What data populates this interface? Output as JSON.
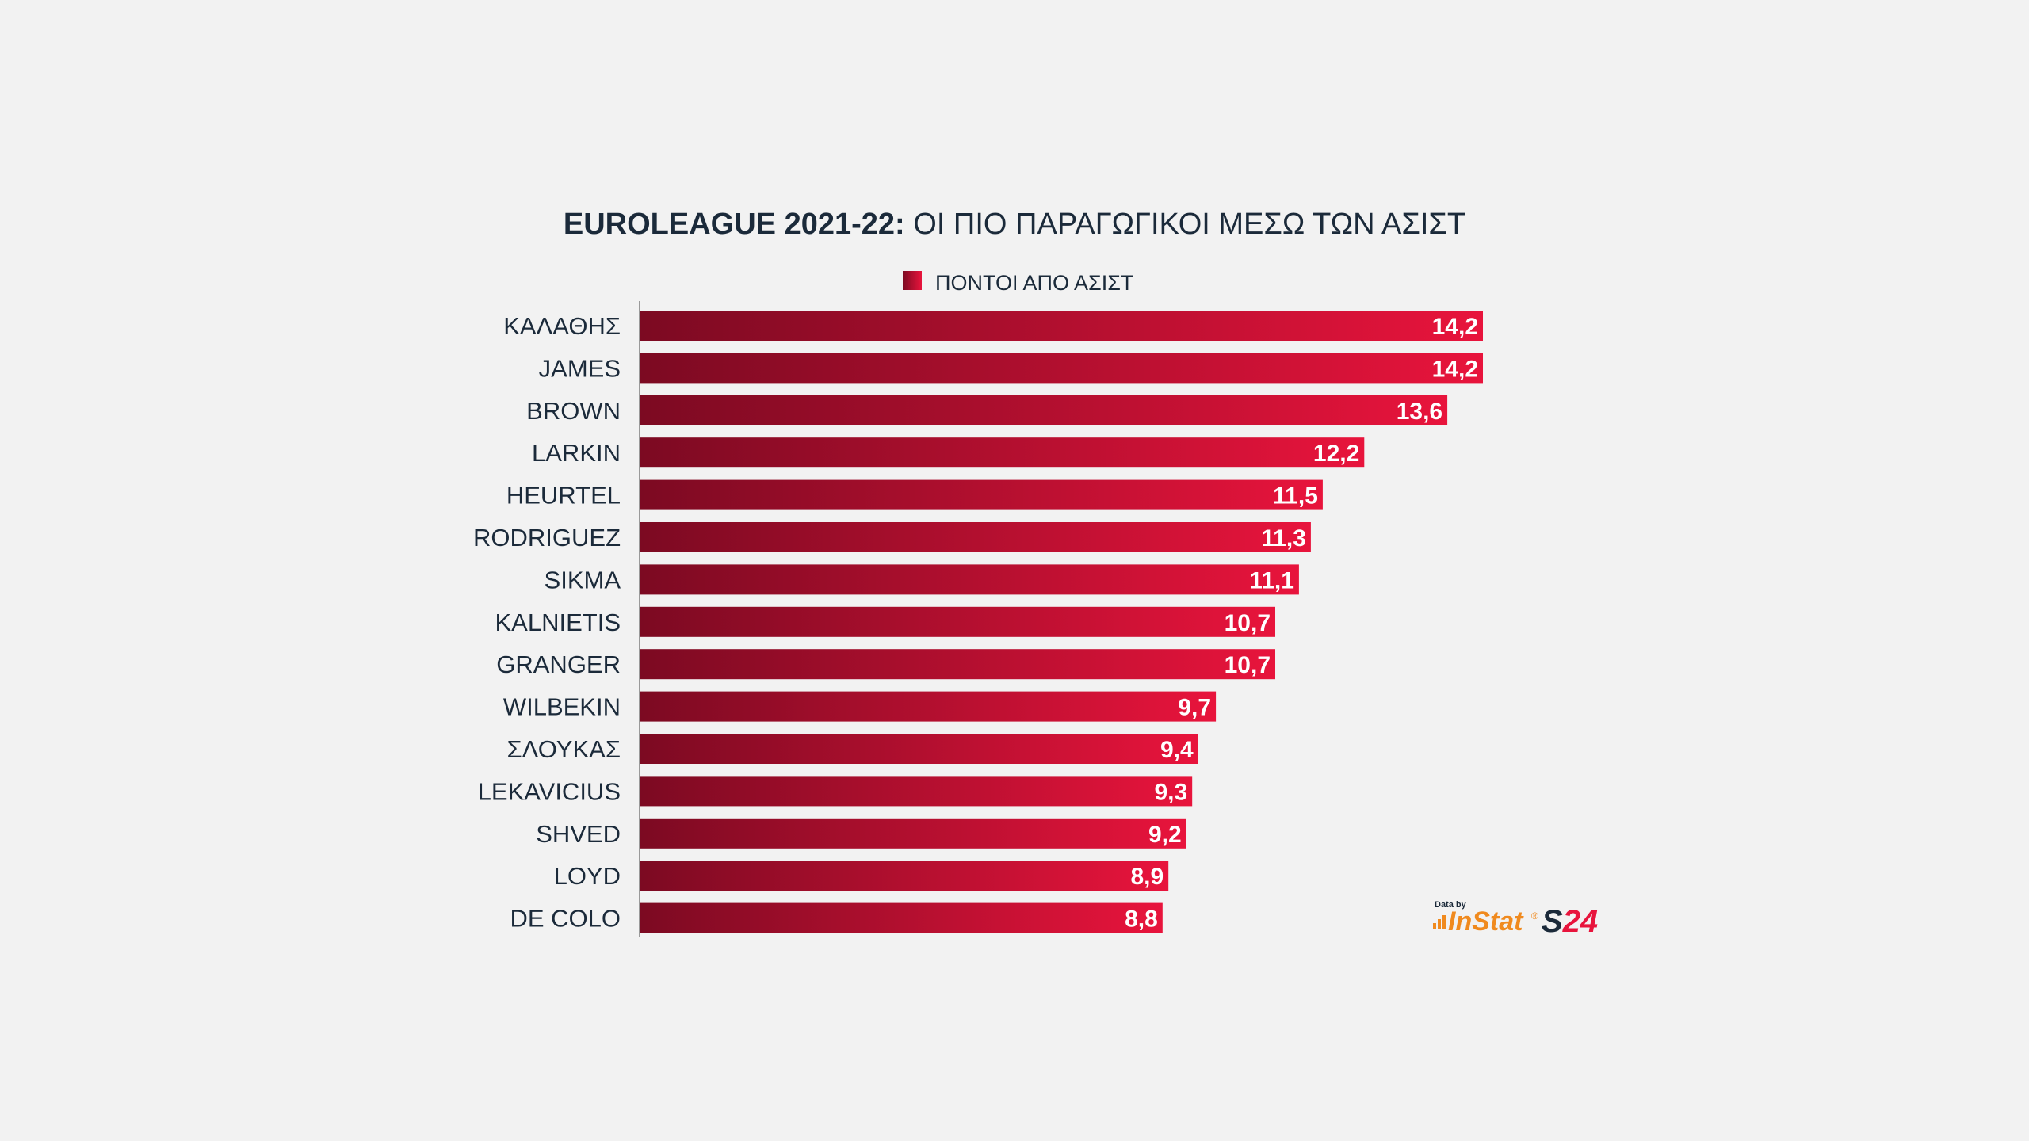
{
  "chart_data": {
    "type": "bar",
    "orientation": "horizontal",
    "title_bold": "EUROLEAGUE 2021-22:",
    "title_rest": " ΟΙ ΠΙΟ ΠΑΡΑΓΩΓΙΚΟΙ ΜΕΣΩ ΤΩΝ ΑΣΙΣΤ",
    "legend": [
      "ΠΟΝΤΟΙ ΑΠΟ ΑΣΙΣΤ"
    ],
    "legend_position": "top-center",
    "categories": [
      "ΚΑΛΑΘΗΣ",
      "JAMES",
      "BROWN",
      "LARKIN",
      "HEURTEL",
      "RODRIGUEZ",
      "SIKMA",
      "KALNIETIS",
      "GRANGER",
      "WILBEKIN",
      "ΣΛΟΥΚΑΣ",
      "LEKAVICIUS",
      "SHVED",
      "LOYD",
      "DE COLO"
    ],
    "values": [
      14.2,
      14.2,
      13.6,
      12.2,
      11.5,
      11.3,
      11.1,
      10.7,
      10.7,
      9.7,
      9.4,
      9.3,
      9.2,
      8.9,
      8.8
    ],
    "value_labels": [
      "14,2",
      "14,2",
      "13,6",
      "12,2",
      "11,5",
      "11,3",
      "11,1",
      "10,7",
      "10,7",
      "9,7",
      "9,4",
      "9,3",
      "9,2",
      "8,9",
      "8,8"
    ],
    "xlim": [
      0,
      14.2
    ],
    "grid": false,
    "bar_color_start": "#7c0a22",
    "bar_color_end": "#e8143c",
    "text_color": "#1b2a3a",
    "background": "#f2f2f2"
  },
  "credits": {
    "data_by": "Data by",
    "instat": "InStat",
    "instat_mark": "®",
    "s24_s": "S",
    "s24_digits": "24",
    "instat_color": "#f08a1e",
    "s24_color_dark": "#1b2a3a",
    "s24_color_red": "#e8143c"
  }
}
